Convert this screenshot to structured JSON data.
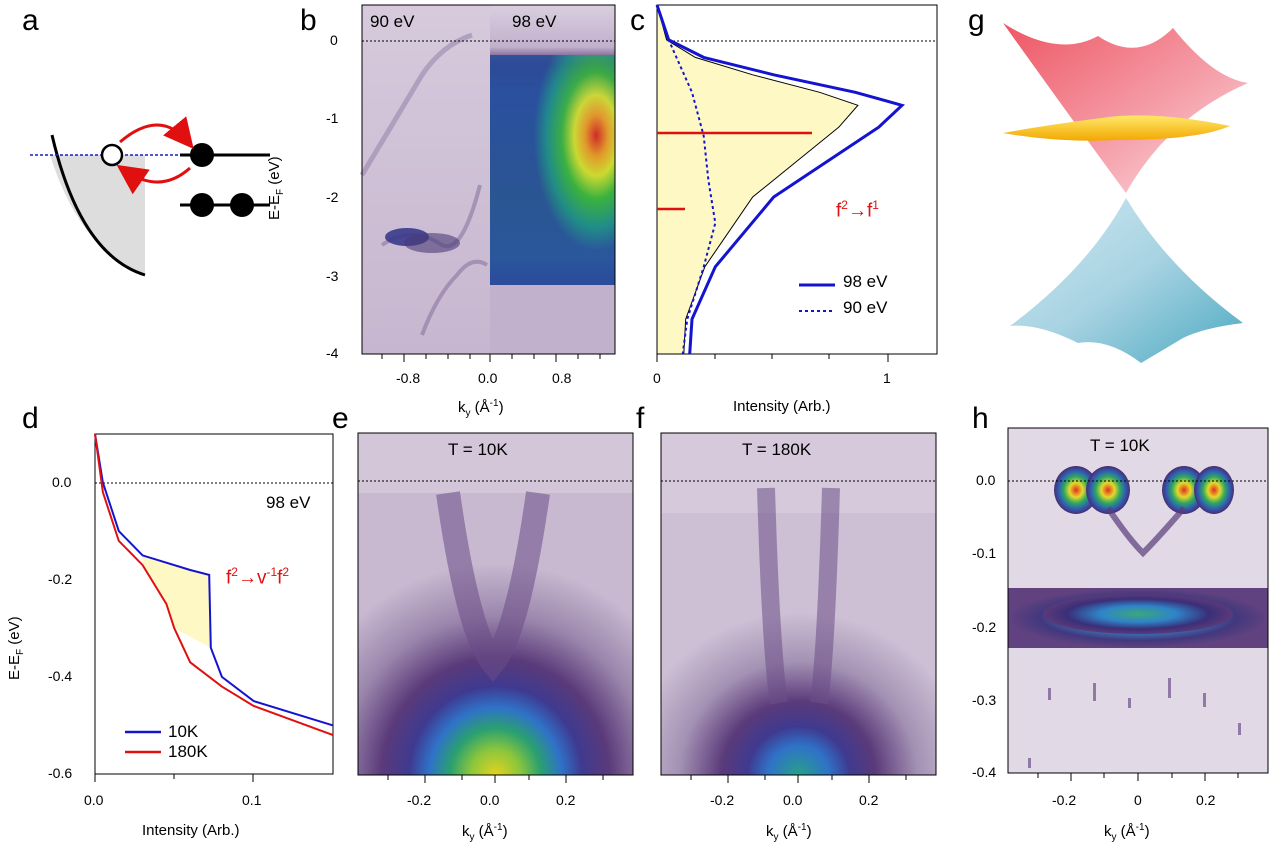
{
  "panels": {
    "a": {
      "letter": "a"
    },
    "b": {
      "letter": "b",
      "label_left": "90 eV",
      "label_right": "98 eV",
      "yticks": [
        "0",
        "-1",
        "-2",
        "-3",
        "-4"
      ],
      "xticks": [
        "-0.8",
        "0.0",
        "0.8"
      ],
      "ylabel_main": "E-E",
      "ylabel_sub": "F",
      "ylabel_unit": " (eV)",
      "xlabel_main": "k",
      "xlabel_sub": "y",
      "xlabel_unit": " (Å",
      "xlabel_exp": "-1",
      "xlabel_close": ")"
    },
    "c": {
      "letter": "c",
      "xticks": [
        "0",
        "1"
      ],
      "xlabel": "Intensity (Arb.)",
      "annot_f1": "f",
      "annot_f1_sup": "2",
      "annot_arrow": "→f",
      "annot_f1_sup2": "1",
      "legend": [
        {
          "label": "98 eV",
          "style": "solid"
        },
        {
          "label": "90 eV",
          "style": "dotted"
        }
      ]
    },
    "d": {
      "letter": "d",
      "label_energy": "98 eV",
      "yticks": [
        "0.0",
        "-0.2",
        "-0.4",
        "-0.6"
      ],
      "xticks": [
        "0.0",
        "0.1"
      ],
      "xlabel": "Intensity (Arb.)",
      "ylabel_main": "E-E",
      "ylabel_sub": "F",
      "ylabel_unit": " (eV)",
      "annot_a": "f",
      "annot_a_sup": "2",
      "annot_b": "→v",
      "annot_b_sup": "-1",
      "annot_c": "f",
      "annot_c_sup": "2",
      "legend": [
        {
          "label": "10K",
          "color": "#1414d0"
        },
        {
          "label": "180K",
          "color": "#e01010"
        }
      ]
    },
    "e": {
      "letter": "e",
      "temp": "T = 10K",
      "xticks": [
        "-0.2",
        "0.0",
        "0.2"
      ],
      "xlabel_main": "k",
      "xlabel_sub": "y",
      "xlabel_unit": " (Å",
      "xlabel_exp": "-1",
      "xlabel_close": ")"
    },
    "f": {
      "letter": "f",
      "temp": "T = 180K",
      "xticks": [
        "-0.2",
        "0.0",
        "0.2"
      ],
      "xlabel_main": "k",
      "xlabel_sub": "y",
      "xlabel_unit": " (Å",
      "xlabel_exp": "-1",
      "xlabel_close": ")"
    },
    "g": {
      "letter": "g"
    },
    "h": {
      "letter": "h",
      "temp": "T = 10K",
      "yticks": [
        "0.0",
        "-0.1",
        "-0.2",
        "-0.3",
        "-0.4"
      ],
      "xticks": [
        "-0.2",
        "0",
        "0.2"
      ],
      "xlabel_main": "k",
      "xlabel_sub": "y",
      "xlabel_unit": " (Å",
      "xlabel_exp": "-1",
      "xlabel_close": ")"
    }
  },
  "colors": {
    "blue": "#1414d0",
    "red": "#e01010",
    "yellow": "#fdf8c4",
    "purple": "#5a3a7a"
  },
  "chart_data": [
    {
      "type": "line",
      "panel": "c",
      "xlim": [
        0,
        1.2
      ],
      "ylim": [
        -4,
        0
      ],
      "series": [
        {
          "name": "98 eV",
          "x": [
            0.0,
            0.05,
            0.2,
            0.5,
            0.85,
            1.05,
            0.95,
            0.5,
            0.25,
            0.15,
            0.14
          ],
          "y": [
            0.0,
            -0.4,
            -0.6,
            -0.8,
            -1.0,
            -1.15,
            -1.4,
            -2.2,
            -3.0,
            -3.6,
            -4.0
          ]
        },
        {
          "name": "90 eV",
          "x": [
            0.0,
            0.05,
            0.1,
            0.15,
            0.2,
            0.22,
            0.25,
            0.2,
            0.13,
            0.11
          ],
          "y": [
            0.0,
            -0.4,
            -0.7,
            -1.0,
            -1.5,
            -2.0,
            -2.5,
            -3.0,
            -3.6,
            -4.0
          ]
        }
      ]
    },
    {
      "type": "line",
      "panel": "d",
      "xlim": [
        0,
        0.15
      ],
      "ylim": [
        -0.6,
        0.1
      ],
      "series": [
        {
          "name": "10K",
          "x": [
            0.0,
            0.005,
            0.015,
            0.03,
            0.06,
            0.072,
            0.073,
            0.08,
            0.1,
            0.15
          ],
          "y": [
            0.1,
            0.0,
            -0.1,
            -0.15,
            -0.18,
            -0.19,
            -0.34,
            -0.4,
            -0.45,
            -0.5
          ]
        },
        {
          "name": "180K",
          "x": [
            0.0,
            0.005,
            0.015,
            0.03,
            0.045,
            0.05,
            0.06,
            0.08,
            0.1,
            0.15
          ],
          "y": [
            0.1,
            -0.02,
            -0.12,
            -0.17,
            -0.25,
            -0.3,
            -0.37,
            -0.42,
            -0.46,
            -0.52
          ]
        }
      ]
    }
  ]
}
